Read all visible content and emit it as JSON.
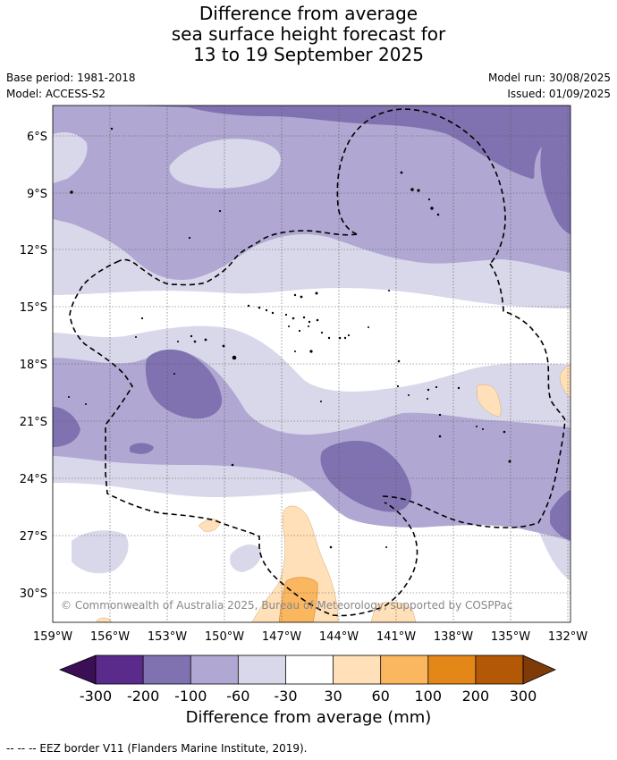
{
  "header": {
    "title_lines": [
      "Difference from average",
      "sea surface height forecast for",
      "13 to 19 September 2025"
    ],
    "base_period": "Base period: 1981-2018",
    "model": "Model: ACCESS-S2",
    "model_run": "Model run: 30/08/2025",
    "issued": "Issued: 01/09/2025"
  },
  "map": {
    "lat_labels": [
      "6°S",
      "9°S",
      "12°S",
      "15°S",
      "18°S",
      "21°S",
      "24°S",
      "27°S",
      "30°S"
    ],
    "lon_labels": [
      "159°W",
      "156°W",
      "153°W",
      "150°W",
      "147°W",
      "144°W",
      "141°W",
      "138°W",
      "135°W",
      "132°W"
    ],
    "copyright": "© Commonwealth of Australia 2025, Bureau of Meteorology, supported by COSPPac"
  },
  "colorbar": {
    "ticks": [
      "-300",
      "-200",
      "-100",
      "-60",
      "-30",
      "30",
      "60",
      "100",
      "200",
      "300"
    ],
    "colors": {
      "below_min": "#3b0f55",
      "bins": [
        "#5a2b8a",
        "#8072b0",
        "#b0a8d2",
        "#d8d8ea",
        "#ffffff",
        "#ffe0b8",
        "#fbb660",
        "#e38818",
        "#b35806"
      ],
      "above_max": "#7e3a08"
    },
    "label": "Difference from average (mm)"
  },
  "footnote": "--  --  -- EEZ border V11 (Flanders Marine Institute, 2019)."
}
